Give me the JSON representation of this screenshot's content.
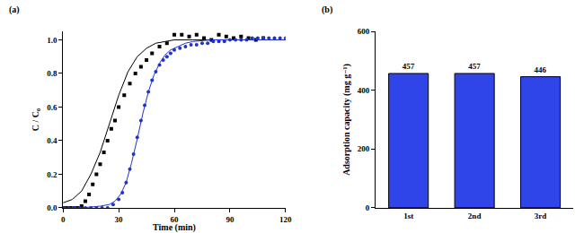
{
  "chart_data": [
    {
      "type": "scatter",
      "title": "(a)",
      "x_label": "Time (min)",
      "y_label": "C / C₀",
      "xlim": [
        0,
        120
      ],
      "xticks": [
        0,
        30,
        60,
        90,
        120
      ],
      "ylim": [
        0,
        1.05
      ],
      "yticks": [
        {
          "value": 0,
          "label": "0.0"
        },
        0.2,
        0.4,
        0.6,
        0.8,
        {
          "value": 1,
          "label": "1.0"
        }
      ],
      "grid": false,
      "series": [
        {
          "type": "scatter",
          "color": "#000000",
          "marker": "square",
          "x": [
            0,
            2,
            4,
            6,
            8,
            10,
            12,
            14,
            16,
            18,
            20,
            22,
            24,
            26,
            28,
            30,
            33,
            36,
            39,
            42,
            45,
            48,
            52,
            56,
            60,
            64,
            68,
            72,
            76,
            80,
            84,
            88,
            92,
            96,
            100,
            104,
            108
          ],
          "values": [
            0,
            0,
            0,
            0,
            0,
            0.01,
            0.04,
            0.08,
            0.14,
            0.2,
            0.26,
            0.33,
            0.4,
            0.47,
            0.52,
            0.6,
            0.67,
            0.74,
            0.8,
            0.84,
            0.88,
            0.92,
            0.96,
            0.98,
            1.03,
            1.03,
            1.02,
            1.03,
            1.01,
            1.0,
            1.03,
            1.02,
            1.01,
            1.02,
            1.01,
            1.0,
            1.01
          ]
        },
        {
          "type": "line",
          "color": "#000000",
          "line_style": "solid",
          "x": [
            0,
            5,
            10,
            15,
            20,
            25,
            30,
            35,
            40,
            45,
            50,
            55,
            60,
            70,
            80,
            90,
            100,
            110,
            120
          ],
          "values": [
            0.03,
            0.05,
            0.1,
            0.2,
            0.33,
            0.5,
            0.67,
            0.81,
            0.9,
            0.95,
            0.98,
            0.99,
            1.0,
            1.0,
            1.0,
            1.0,
            1.0,
            1.0,
            1.0
          ]
        },
        {
          "type": "scatter",
          "color": "#2233cc",
          "marker": "circle",
          "x": [
            0,
            3,
            6,
            9,
            12,
            15,
            18,
            21,
            24,
            27,
            30,
            32,
            34,
            36,
            38,
            40,
            42,
            44,
            46,
            48,
            50,
            52,
            54,
            56,
            58,
            60,
            63,
            66,
            69,
            72,
            75,
            78,
            81,
            84,
            87,
            90,
            93,
            96,
            99,
            102,
            105,
            108,
            111,
            114,
            117,
            120
          ],
          "values": [
            0,
            0,
            0,
            0,
            0,
            0,
            0,
            0,
            0,
            0.02,
            0.05,
            0.09,
            0.15,
            0.23,
            0.32,
            0.42,
            0.52,
            0.61,
            0.69,
            0.76,
            0.81,
            0.85,
            0.88,
            0.9,
            0.92,
            0.94,
            0.95,
            0.96,
            0.97,
            0.97,
            0.98,
            0.98,
            0.99,
            0.99,
            0.99,
            1.0,
            1.0,
            1.0,
            1.0,
            1.01,
            1.01,
            1.01,
            1.01,
            1.01,
            1.01,
            1.01
          ]
        },
        {
          "type": "line",
          "color": "#2233cc",
          "line_style": "solid",
          "x": [
            0,
            10,
            20,
            25,
            28,
            31,
            34,
            37,
            40,
            43,
            46,
            49,
            52,
            55,
            58,
            62,
            66,
            70,
            80,
            90,
            100,
            120
          ],
          "values": [
            0,
            0,
            0.01,
            0.02,
            0.04,
            0.08,
            0.15,
            0.27,
            0.41,
            0.56,
            0.69,
            0.79,
            0.86,
            0.91,
            0.94,
            0.96,
            0.98,
            0.99,
            1.0,
            1.0,
            1.0,
            1.0
          ]
        }
      ]
    },
    {
      "type": "bar",
      "title": "(b)",
      "y_label": "Adsorption capacity (mg g⁻¹)",
      "categories": [
        "1st",
        "2nd",
        "3rd"
      ],
      "values": [
        457,
        457,
        446
      ],
      "color": "#2f45e8",
      "ylim": [
        0,
        600
      ],
      "yticks": [
        0,
        200,
        400,
        600
      ],
      "data_labels": true,
      "grid": false
    }
  ]
}
